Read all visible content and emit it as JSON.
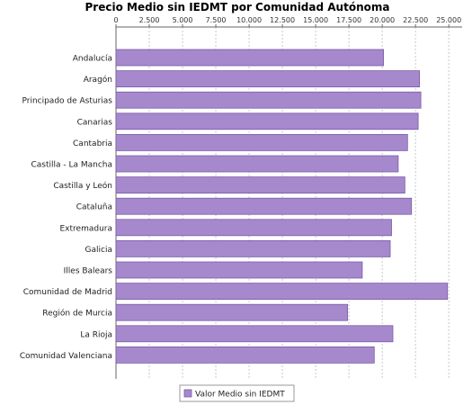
{
  "chart_data": {
    "type": "bar",
    "orientation": "horizontal",
    "title": "Precio Medio sin IEDMT por Comunidad Autónoma",
    "xlim": [
      0,
      26000
    ],
    "ticks": [
      0,
      2500,
      5000,
      7500,
      10000,
      12500,
      15000,
      17500,
      20000,
      22500,
      25000
    ],
    "tick_labels": [
      "0",
      "2.500",
      "5.000",
      "7.500",
      "10.000",
      "12.500",
      "15.000",
      "17.500",
      "20.000",
      "22.500",
      "25.000"
    ],
    "axis_position": "top",
    "grid": true,
    "legend_position": "bottom-center",
    "categories": [
      "Andalucía",
      "Aragón",
      "Principado de Asturias",
      "Canarias",
      "Cantabria",
      "Castilla - La Mancha",
      "Castilla y León",
      "Cataluña",
      "Extremadura",
      "Galicia",
      "Illes Balears",
      "Comunidad de Madrid",
      "Región de Murcia",
      "La Rioja",
      "Comunidad Valenciana"
    ],
    "series": [
      {
        "name": "Valor Medio sin IEDMT",
        "color": "#a689cc",
        "values": [
          20100,
          22800,
          22900,
          22700,
          21900,
          21200,
          21700,
          22200,
          20700,
          20600,
          18500,
          24900,
          17400,
          20800,
          19400
        ]
      }
    ]
  }
}
